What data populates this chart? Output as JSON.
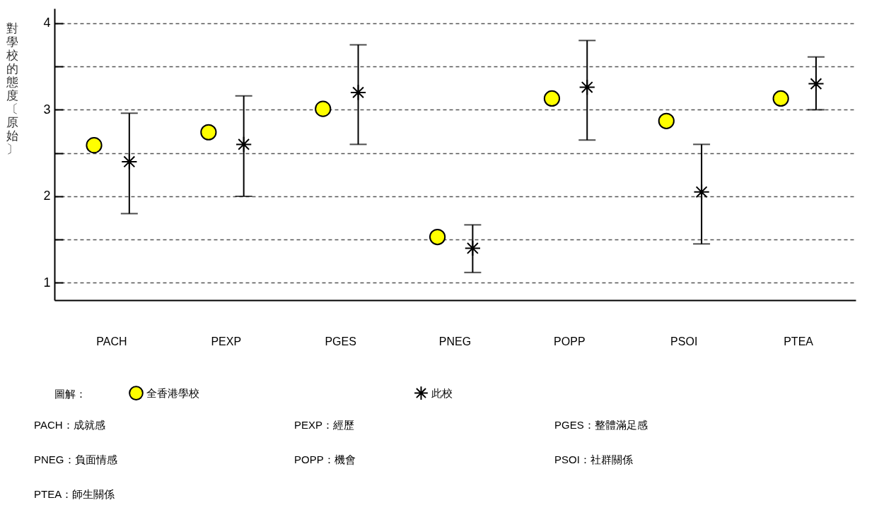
{
  "chart_data": {
    "type": "scatter",
    "ylabel": "對學校的態度〔原始〕",
    "legend_title": "圖解：",
    "categories": [
      "PACH",
      "PEXP",
      "PGES",
      "PNEG",
      "POPP",
      "PSOI",
      "PTEA"
    ],
    "series": [
      {
        "name": "全香港學校",
        "color": "#ffff00",
        "marker": "circle",
        "values": [
          2.59,
          2.74,
          3.01,
          1.53,
          3.13,
          2.87,
          3.13
        ]
      },
      {
        "name": "此校",
        "color": "#000000",
        "marker": "cross",
        "values": [
          2.4,
          2.6,
          3.2,
          1.4,
          3.26,
          2.05,
          3.3
        ],
        "errors": [
          [
            1.8,
            2.96
          ],
          [
            2.0,
            3.16
          ],
          [
            2.6,
            3.75
          ],
          [
            1.12,
            1.67
          ],
          [
            2.65,
            3.8
          ],
          [
            1.45,
            2.6
          ],
          [
            3.0,
            3.61
          ]
        ]
      }
    ],
    "ylim": [
      0.8,
      4.17
    ],
    "yticks": [
      1,
      {
        "value": 1.5,
        "label": null
      },
      2,
      {
        "value": 2.5,
        "label": null
      },
      3,
      {
        "value": 3.5,
        "label": null
      },
      4
    ],
    "grid": "y",
    "legend": "bottom",
    "annotations": [
      "PACH：成就感",
      "PEXP：經歷",
      "PGES：整體滿足感",
      "PNEG：負面情感",
      "POPP：機會",
      "PSOI：社群關係",
      "PTEA：師生關係"
    ]
  }
}
